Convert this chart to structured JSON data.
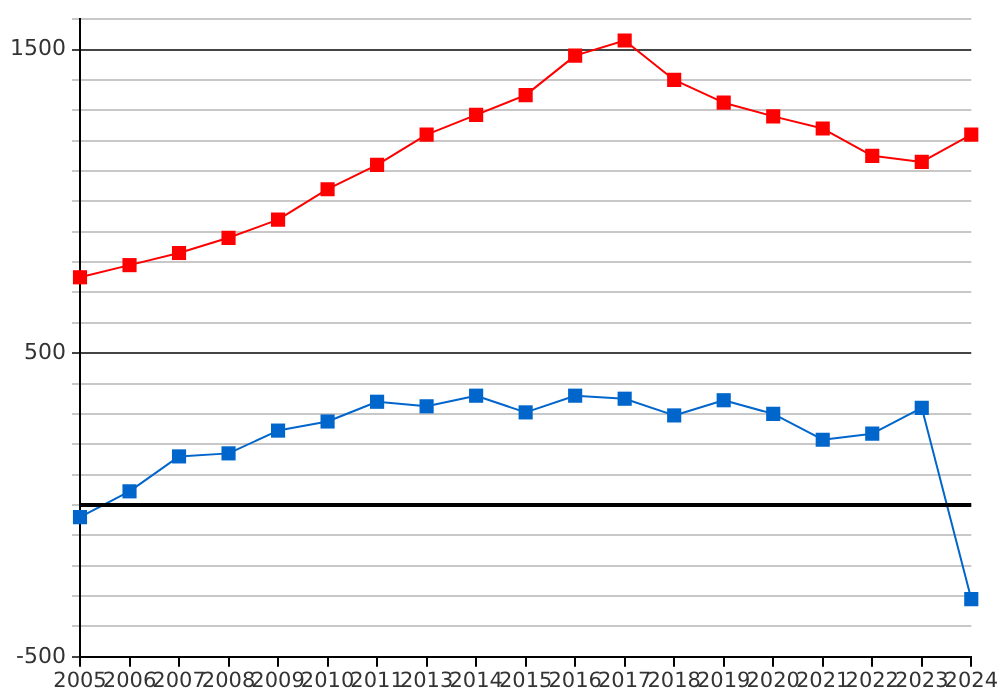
{
  "chart_data": {
    "type": "line",
    "categories": [
      "2005",
      "2006",
      "2007",
      "2008",
      "2009",
      "2010",
      "2011",
      "2013",
      "2014",
      "2015",
      "2016",
      "2017",
      "2018",
      "2019",
      "2020",
      "2021",
      "2022",
      "2023",
      "2024"
    ],
    "series": [
      {
        "color": "#ff0000",
        "values": [
          750,
          790,
          830,
          880,
          940,
          1040,
          1120,
          1220,
          1285,
          1350,
          1480,
          1530,
          1400,
          1325,
          1280,
          1240,
          1150,
          1130,
          1220
        ]
      },
      {
        "color": "#0066cc",
        "values": [
          -40,
          45,
          160,
          170,
          245,
          275,
          340,
          325,
          360,
          305,
          360,
          350,
          295,
          345,
          300,
          215,
          235,
          320,
          -310
        ]
      }
    ],
    "ylim": [
      -500,
      1600
    ],
    "yticks": [
      -500,
      {
        "value": -400,
        "label": null
      },
      {
        "value": -300,
        "label": null
      },
      {
        "value": -200,
        "label": null
      },
      {
        "value": -100,
        "label": null
      },
      {
        "value": 0,
        "label": null
      },
      {
        "value": 100,
        "label": null
      },
      {
        "value": 200,
        "label": null
      },
      {
        "value": 300,
        "label": null
      },
      {
        "value": 400,
        "label": null
      },
      500,
      {
        "value": 600,
        "label": null
      },
      {
        "value": 700,
        "label": null
      },
      {
        "value": 800,
        "label": null
      },
      {
        "value": 900,
        "label": null
      },
      {
        "value": 1000,
        "label": null
      },
      {
        "value": 1100,
        "label": null
      },
      {
        "value": 1200,
        "label": null
      },
      {
        "value": 1300,
        "label": null
      },
      {
        "value": 1400,
        "label": null
      },
      1500,
      {
        "value": 1600,
        "label": null
      }
    ],
    "grid": "y",
    "marker": "square",
    "line_style": "solid",
    "ref_lines": [
      {
        "axis": "y",
        "value": 0,
        "color": "#000000"
      }
    ]
  }
}
